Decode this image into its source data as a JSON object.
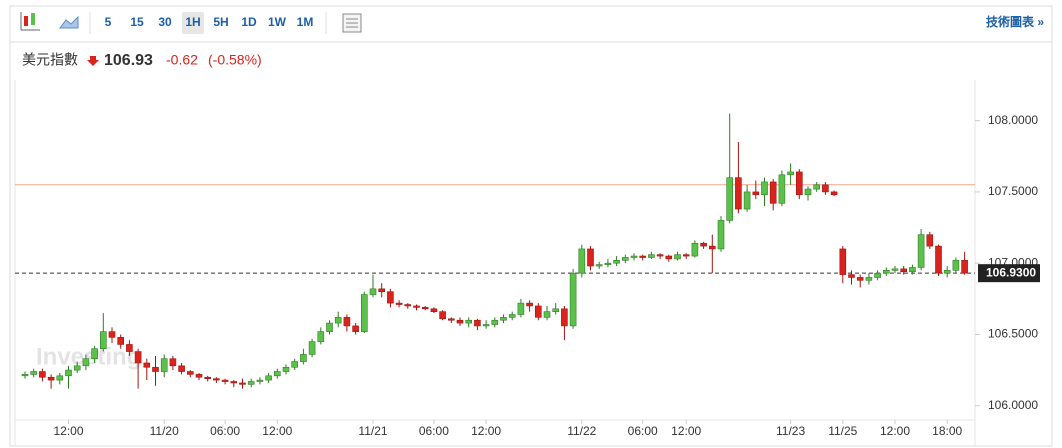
{
  "header": {
    "intervals": [
      "5",
      "15",
      "30",
      "1H",
      "5H",
      "1D",
      "1W",
      "1M"
    ],
    "active_interval": "1H",
    "link": "技術圖表 »"
  },
  "quote": {
    "name": "美元指數",
    "price": "106.93",
    "change": "-0.62",
    "change_pct": "(-0.58%)"
  },
  "chart_data": {
    "type": "candlestick",
    "watermark": "Investing",
    "up_color": "#5cc14a",
    "down_color": "#d9231d",
    "categories": [
      null,
      null,
      null,
      null,
      null,
      "12:00",
      null,
      null,
      null,
      null,
      null,
      null,
      null,
      null,
      null,
      null,
      "11/20",
      null,
      null,
      null,
      null,
      null,
      null,
      "06:00",
      null,
      null,
      null,
      null,
      null,
      "12:00",
      null,
      null,
      null,
      null,
      null,
      null,
      null,
      null,
      null,
      null,
      "11/21",
      null,
      null,
      null,
      null,
      null,
      null,
      "06:00",
      null,
      null,
      null,
      null,
      null,
      "12:00",
      null,
      null,
      null,
      null,
      null,
      null,
      null,
      null,
      null,
      null,
      "11/22",
      null,
      null,
      null,
      null,
      null,
      null,
      "06:00",
      null,
      null,
      null,
      null,
      "12:00",
      null,
      null,
      null,
      null,
      null,
      null,
      null,
      null,
      null,
      null,
      null,
      "11/23",
      null,
      null,
      null,
      null,
      null,
      "11/25",
      null,
      null,
      null,
      null,
      null,
      "12:00",
      null,
      null,
      null,
      null,
      null,
      "18:00",
      null,
      null
    ],
    "candles": [
      [
        106.21,
        106.24,
        106.19,
        106.22
      ],
      [
        106.22,
        106.26,
        106.2,
        106.24
      ],
      [
        106.24,
        106.26,
        106.17,
        106.2
      ],
      [
        106.2,
        106.22,
        106.12,
        106.18
      ],
      [
        106.18,
        106.23,
        106.15,
        106.21
      ],
      [
        106.21,
        106.28,
        106.12,
        106.25
      ],
      [
        106.25,
        106.31,
        106.23,
        106.28
      ],
      [
        106.28,
        106.36,
        106.25,
        106.33
      ],
      [
        106.33,
        106.42,
        106.3,
        106.4
      ],
      [
        106.4,
        106.65,
        106.38,
        106.52
      ],
      [
        106.52,
        106.55,
        106.44,
        106.48
      ],
      [
        106.48,
        106.5,
        106.4,
        106.43
      ],
      [
        106.43,
        106.46,
        106.35,
        106.38
      ],
      [
        106.38,
        106.4,
        106.12,
        106.3
      ],
      [
        106.3,
        106.33,
        106.18,
        106.27
      ],
      [
        106.27,
        106.35,
        106.14,
        106.24
      ],
      [
        106.24,
        106.36,
        106.2,
        106.33
      ],
      [
        106.33,
        106.35,
        106.25,
        106.28
      ],
      [
        106.28,
        106.3,
        106.22,
        106.24
      ],
      [
        106.24,
        106.25,
        106.2,
        106.22
      ],
      [
        106.22,
        106.23,
        106.18,
        106.2
      ],
      [
        106.2,
        106.21,
        106.17,
        106.19
      ],
      [
        106.19,
        106.2,
        106.16,
        106.18
      ],
      [
        106.18,
        106.19,
        106.15,
        106.17
      ],
      [
        106.17,
        106.18,
        106.13,
        106.16
      ],
      [
        106.16,
        106.19,
        106.12,
        106.15
      ],
      [
        106.15,
        106.19,
        106.13,
        106.17
      ],
      [
        106.17,
        106.2,
        106.15,
        106.18
      ],
      [
        106.18,
        106.23,
        106.16,
        106.21
      ],
      [
        106.21,
        106.26,
        106.19,
        106.24
      ],
      [
        106.24,
        106.29,
        106.22,
        106.27
      ],
      [
        106.27,
        106.33,
        106.25,
        106.31
      ],
      [
        106.31,
        106.4,
        106.29,
        106.36
      ],
      [
        106.36,
        106.47,
        106.34,
        106.45
      ],
      [
        106.45,
        106.55,
        106.43,
        106.52
      ],
      [
        106.52,
        106.6,
        106.5,
        106.58
      ],
      [
        106.58,
        106.66,
        106.55,
        106.62
      ],
      [
        106.62,
        106.64,
        106.52,
        106.56
      ],
      [
        106.56,
        106.58,
        106.5,
        106.52
      ],
      [
        106.52,
        106.8,
        106.51,
        106.78
      ],
      [
        106.78,
        106.92,
        106.76,
        106.82
      ],
      [
        106.82,
        106.86,
        106.76,
        106.8
      ],
      [
        106.8,
        106.82,
        106.69,
        106.72
      ],
      [
        106.72,
        106.74,
        106.69,
        106.71
      ],
      [
        106.71,
        106.72,
        106.68,
        106.7
      ],
      [
        106.7,
        106.71,
        106.67,
        106.69
      ],
      [
        106.69,
        106.7,
        106.67,
        106.68
      ],
      [
        106.68,
        106.69,
        106.65,
        106.66
      ],
      [
        106.66,
        106.67,
        106.6,
        106.61
      ],
      [
        106.61,
        106.62,
        106.58,
        106.6
      ],
      [
        106.6,
        106.62,
        106.56,
        106.58
      ],
      [
        106.58,
        106.62,
        106.55,
        106.6
      ],
      [
        106.6,
        106.61,
        106.53,
        106.56
      ],
      [
        106.56,
        106.6,
        106.54,
        106.57
      ],
      [
        106.57,
        106.62,
        106.55,
        106.6
      ],
      [
        106.6,
        106.64,
        106.58,
        106.62
      ],
      [
        106.62,
        106.66,
        106.6,
        106.64
      ],
      [
        106.64,
        106.75,
        106.62,
        106.72
      ],
      [
        106.72,
        106.74,
        106.66,
        106.7
      ],
      [
        106.7,
        106.72,
        106.6,
        106.62
      ],
      [
        106.62,
        106.7,
        106.6,
        106.66
      ],
      [
        106.66,
        106.72,
        106.64,
        106.68
      ],
      [
        106.68,
        106.7,
        106.46,
        106.56
      ],
      [
        106.56,
        106.96,
        106.54,
        106.93
      ],
      [
        106.93,
        107.13,
        106.9,
        107.1
      ],
      [
        107.1,
        107.12,
        106.95,
        106.98
      ],
      [
        106.98,
        107.01,
        106.96,
        106.99
      ],
      [
        106.99,
        107.03,
        106.97,
        107.0
      ],
      [
        107.0,
        107.05,
        106.98,
        107.02
      ],
      [
        107.02,
        107.06,
        107.0,
        107.04
      ],
      [
        107.04,
        107.07,
        107.02,
        107.05
      ],
      [
        107.05,
        107.06,
        107.02,
        107.04
      ],
      [
        107.04,
        107.08,
        107.03,
        107.06
      ],
      [
        107.06,
        107.07,
        107.03,
        107.05
      ],
      [
        107.05,
        107.06,
        107.01,
        107.03
      ],
      [
        107.03,
        107.08,
        107.02,
        107.06
      ],
      [
        107.06,
        107.07,
        107.03,
        107.05
      ],
      [
        107.05,
        107.16,
        107.04,
        107.14
      ],
      [
        107.14,
        107.15,
        107.1,
        107.12
      ],
      [
        107.12,
        107.2,
        106.93,
        107.1
      ],
      [
        107.1,
        107.33,
        107.08,
        107.3
      ],
      [
        107.3,
        108.05,
        107.28,
        107.6
      ],
      [
        107.6,
        107.85,
        107.35,
        107.38
      ],
      [
        107.38,
        107.55,
        107.36,
        107.5
      ],
      [
        107.5,
        107.58,
        107.45,
        107.48
      ],
      [
        107.48,
        107.6,
        107.4,
        107.57
      ],
      [
        107.57,
        107.59,
        107.37,
        107.42
      ],
      [
        107.42,
        107.65,
        107.4,
        107.62
      ],
      [
        107.62,
        107.7,
        107.55,
        107.64
      ],
      [
        107.64,
        107.66,
        107.45,
        107.48
      ],
      [
        107.48,
        107.54,
        107.44,
        107.52
      ],
      [
        107.52,
        107.57,
        107.5,
        107.55
      ],
      [
        107.55,
        107.57,
        107.48,
        107.5
      ],
      [
        107.5,
        107.51,
        107.47,
        107.48
      ],
      [
        107.1,
        107.12,
        106.86,
        106.92
      ],
      [
        106.92,
        106.95,
        106.85,
        106.9
      ],
      [
        106.9,
        106.92,
        106.83,
        106.88
      ],
      [
        106.88,
        106.93,
        106.85,
        106.9
      ],
      [
        106.9,
        106.95,
        106.88,
        106.93
      ],
      [
        106.93,
        106.97,
        106.91,
        106.95
      ],
      [
        106.95,
        106.98,
        106.93,
        106.96
      ],
      [
        106.96,
        106.98,
        106.92,
        106.94
      ],
      [
        106.94,
        106.99,
        106.92,
        106.97
      ],
      [
        106.97,
        107.24,
        106.95,
        107.2
      ],
      [
        107.2,
        107.22,
        107.1,
        107.12
      ],
      [
        107.12,
        107.13,
        106.91,
        106.93
      ],
      [
        106.93,
        106.98,
        106.9,
        106.95
      ],
      [
        106.95,
        107.04,
        106.93,
        107.02
      ],
      [
        107.02,
        107.08,
        106.92,
        106.93
      ]
    ],
    "ylim": [
      105.9,
      108.25
    ],
    "yticks": [
      {
        "value": 106,
        "label": "106.0000"
      },
      {
        "value": 106.5,
        "label": "106.5000"
      },
      {
        "value": 107,
        "label": "107.0000"
      },
      {
        "value": 107.5,
        "label": "107.5000"
      },
      {
        "value": 108,
        "label": "108.0000"
      }
    ],
    "prev_close": 107.55,
    "prev_close_color": "#f0a58e",
    "last": {
      "value": 106.93,
      "label": "106.9300"
    }
  }
}
